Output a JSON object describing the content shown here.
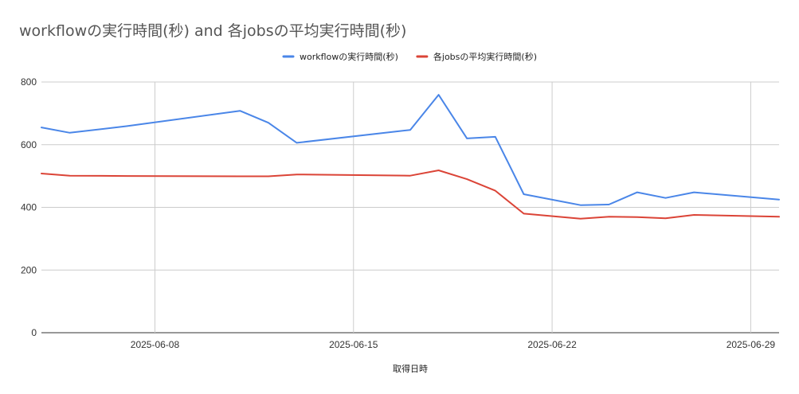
{
  "chart_data": {
    "type": "line",
    "title": "workflowの実行時間(秒) and 各jobsの平均実行時間(秒)",
    "xlabel": "取得日時",
    "ylabel": "",
    "ylim": [
      0,
      800
    ],
    "yticks": [
      0,
      200,
      400,
      600,
      800
    ],
    "xlim": [
      "2025-06-04",
      "2025-06-30"
    ],
    "xticks": [
      "2025-06-08",
      "2025-06-15",
      "2025-06-22",
      "2025-06-29"
    ],
    "grid": true,
    "legend_position": "top",
    "series": [
      {
        "name": "workflowの実行時間(秒)",
        "color": "#4a86e8",
        "points": [
          [
            "2025-06-04",
            655
          ],
          [
            "2025-06-05",
            638
          ],
          [
            "2025-06-07",
            659
          ],
          [
            "2025-06-11",
            708
          ],
          [
            "2025-06-12",
            670
          ],
          [
            "2025-06-13",
            606
          ],
          [
            "2025-06-17",
            647
          ],
          [
            "2025-06-18",
            759
          ],
          [
            "2025-06-19",
            620
          ],
          [
            "2025-06-20",
            625
          ],
          [
            "2025-06-21",
            442
          ],
          [
            "2025-06-23",
            407
          ],
          [
            "2025-06-24",
            409
          ],
          [
            "2025-06-25",
            448
          ],
          [
            "2025-06-26",
            430
          ],
          [
            "2025-06-27",
            448
          ],
          [
            "2025-06-30",
            425
          ]
        ]
      },
      {
        "name": "各jobsの平均実行時間(秒)",
        "color": "#db4437",
        "points": [
          [
            "2025-06-04",
            508
          ],
          [
            "2025-06-05",
            501
          ],
          [
            "2025-06-07",
            500
          ],
          [
            "2025-06-11",
            499
          ],
          [
            "2025-06-12",
            499
          ],
          [
            "2025-06-13",
            505
          ],
          [
            "2025-06-17",
            501
          ],
          [
            "2025-06-18",
            518
          ],
          [
            "2025-06-19",
            490
          ],
          [
            "2025-06-20",
            453
          ],
          [
            "2025-06-21",
            380
          ],
          [
            "2025-06-23",
            364
          ],
          [
            "2025-06-24",
            370
          ],
          [
            "2025-06-25",
            369
          ],
          [
            "2025-06-26",
            365
          ],
          [
            "2025-06-27",
            376
          ],
          [
            "2025-06-30",
            370
          ]
        ]
      }
    ]
  }
}
